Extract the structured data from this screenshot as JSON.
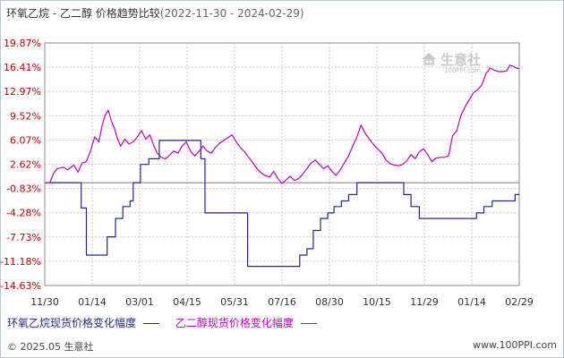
{
  "title": {
    "main": "环氧乙烷 - 乙二醇 价格趋势比较",
    "range": "(2022-11-30 - 2024-02-29)"
  },
  "watermark": {
    "text": "生意社",
    "sub": "100PPI.com"
  },
  "legend": [
    {
      "label": "环氧乙烷现货价格变化幅度",
      "color": "#1f2a8c"
    },
    {
      "label": "乙二醇现货价格变化幅度",
      "color": "#c000c0"
    }
  ],
  "footer": {
    "left": "© 2025.05 生意社",
    "right": "www.100PPI.com"
  },
  "chart_data": {
    "type": "line",
    "title": "环氧乙烷 - 乙二醇 价格趋势比较",
    "xlabel": "",
    "ylabel": "",
    "y_ticks": [
      "19.87%",
      "16.41%",
      "12.97%",
      "9.52%",
      "6.07%",
      "2.62%",
      "-0.83%",
      "-4.28%",
      "-7.73%",
      "-11.18%",
      "-14.63%"
    ],
    "ylim": [
      -14.63,
      19.87
    ],
    "x_ticks": [
      "11/30",
      "01/14",
      "03/01",
      "04/15",
      "05/31",
      "07/16",
      "08/30",
      "10/15",
      "11/29",
      "01/14",
      "02/29"
    ],
    "xlim": [
      0,
      456
    ],
    "x_unit": "days since 2022-11-30",
    "grid": true,
    "legend_position": "bottom",
    "series": [
      {
        "name": "环氧乙烷现货价格变化幅度",
        "color": "#1f2a8c",
        "step": true,
        "points": [
          [
            0,
            0
          ],
          [
            15,
            0
          ],
          [
            35,
            -3.6
          ],
          [
            40,
            -10.3
          ],
          [
            55,
            -10.3
          ],
          [
            60,
            -7.7
          ],
          [
            68,
            -5.1
          ],
          [
            75,
            -3.4
          ],
          [
            82,
            -2.6
          ],
          [
            85,
            0
          ],
          [
            92,
            2.6
          ],
          [
            100,
            3.4
          ],
          [
            110,
            6.0
          ],
          [
            145,
            6.0
          ],
          [
            150,
            3.4
          ],
          [
            154,
            -4.3
          ],
          [
            190,
            -4.3
          ],
          [
            195,
            -11.9
          ],
          [
            240,
            -11.9
          ],
          [
            245,
            -10.3
          ],
          [
            252,
            -9.4
          ],
          [
            258,
            -6.8
          ],
          [
            265,
            -5.1
          ],
          [
            272,
            -4.3
          ],
          [
            278,
            -3.4
          ],
          [
            285,
            -2.6
          ],
          [
            292,
            -1.7
          ],
          [
            300,
            0
          ],
          [
            338,
            0
          ],
          [
            345,
            -1.7
          ],
          [
            352,
            -3.4
          ],
          [
            360,
            -5.1
          ],
          [
            410,
            -5.1
          ],
          [
            415,
            -4.3
          ],
          [
            422,
            -3.4
          ],
          [
            430,
            -2.6
          ],
          [
            447,
            -2.6
          ],
          [
            452,
            -1.7
          ],
          [
            456,
            -1.7
          ]
        ]
      },
      {
        "name": "乙二醇现货价格变化幅度",
        "color": "#c000c0",
        "step": false,
        "points": [
          [
            0,
            0
          ],
          [
            5,
            0
          ],
          [
            8,
            1.2
          ],
          [
            12,
            2.0
          ],
          [
            18,
            2.2
          ],
          [
            22,
            1.8
          ],
          [
            28,
            2.5
          ],
          [
            32,
            1.5
          ],
          [
            36,
            2.8
          ],
          [
            40,
            3.0
          ],
          [
            44,
            4.5
          ],
          [
            48,
            6.5
          ],
          [
            52,
            5.8
          ],
          [
            55,
            8.0
          ],
          [
            58,
            9.6
          ],
          [
            61,
            10.3
          ],
          [
            64,
            8.8
          ],
          [
            67,
            7.7
          ],
          [
            70,
            6.2
          ],
          [
            73,
            5.2
          ],
          [
            77,
            6.2
          ],
          [
            81,
            5.5
          ],
          [
            85,
            5.8
          ],
          [
            89,
            6.5
          ],
          [
            93,
            7.4
          ],
          [
            97,
            6.2
          ],
          [
            101,
            6.8
          ],
          [
            105,
            5.2
          ],
          [
            108,
            4.2
          ],
          [
            112,
            3.6
          ],
          [
            116,
            3.4
          ],
          [
            120,
            3.9
          ],
          [
            124,
            4.5
          ],
          [
            128,
            4.2
          ],
          [
            132,
            5.2
          ],
          [
            136,
            5.8
          ],
          [
            140,
            4.5
          ],
          [
            144,
            3.8
          ],
          [
            148,
            4.4
          ],
          [
            152,
            5.2
          ],
          [
            156,
            4.5
          ],
          [
            160,
            4.2
          ],
          [
            164,
            5.0
          ],
          [
            168,
            5.6
          ],
          [
            172,
            6.0
          ],
          [
            176,
            6.4
          ],
          [
            180,
            6.8
          ],
          [
            184,
            5.8
          ],
          [
            188,
            5.0
          ],
          [
            192,
            4.4
          ],
          [
            196,
            3.6
          ],
          [
            200,
            2.8
          ],
          [
            204,
            2.0
          ],
          [
            208,
            1.4
          ],
          [
            212,
            1.0
          ],
          [
            216,
            0.8
          ],
          [
            220,
            1.6
          ],
          [
            224,
            0.6
          ],
          [
            228,
            -0.1
          ],
          [
            232,
            0.4
          ],
          [
            236,
            0.9
          ],
          [
            240,
            0.3
          ],
          [
            244,
            0.6
          ],
          [
            248,
            1.2
          ],
          [
            252,
            2.0
          ],
          [
            256,
            2.8
          ],
          [
            260,
            3.2
          ],
          [
            264,
            2.6
          ],
          [
            268,
            2.0
          ],
          [
            272,
            2.4
          ],
          [
            276,
            1.6
          ],
          [
            280,
            1.0
          ],
          [
            284,
            1.8
          ],
          [
            288,
            2.8
          ],
          [
            292,
            3.8
          ],
          [
            296,
            5.2
          ],
          [
            300,
            6.5
          ],
          [
            304,
            8.2
          ],
          [
            308,
            7.0
          ],
          [
            312,
            6.2
          ],
          [
            316,
            5.4
          ],
          [
            320,
            4.8
          ],
          [
            324,
            4.2
          ],
          [
            328,
            3.2
          ],
          [
            332,
            2.7
          ],
          [
            336,
            2.5
          ],
          [
            340,
            2.4
          ],
          [
            344,
            2.6
          ],
          [
            348,
            3.1
          ],
          [
            352,
            4.0
          ],
          [
            356,
            3.4
          ],
          [
            360,
            4.4
          ],
          [
            364,
            4.8
          ],
          [
            368,
            4.0
          ],
          [
            372,
            3.0
          ],
          [
            376,
            3.5
          ],
          [
            380,
            3.6
          ],
          [
            384,
            3.6
          ],
          [
            388,
            3.8
          ],
          [
            392,
            6.7
          ],
          [
            396,
            7.4
          ],
          [
            400,
            9.6
          ],
          [
            404,
            10.8
          ],
          [
            408,
            11.8
          ],
          [
            412,
            12.8
          ],
          [
            416,
            13.2
          ],
          [
            420,
            13.9
          ],
          [
            424,
            15.5
          ],
          [
            428,
            16.3
          ],
          [
            432,
            16.0
          ],
          [
            436,
            15.8
          ],
          [
            440,
            15.8
          ],
          [
            444,
            15.9
          ],
          [
            447,
            16.7
          ],
          [
            450,
            16.6
          ],
          [
            453,
            16.3
          ],
          [
            456,
            16.2
          ]
        ]
      }
    ]
  }
}
